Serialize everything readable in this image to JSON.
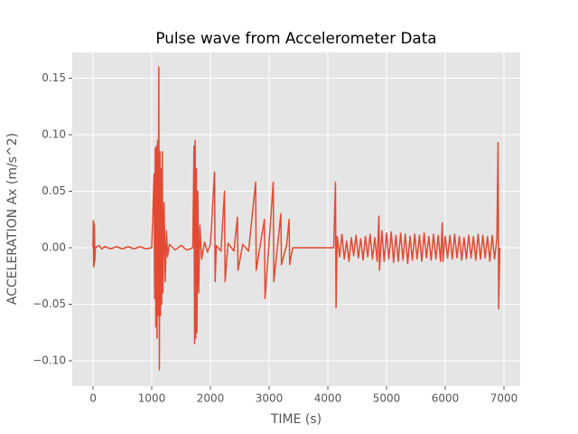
{
  "chart_data": {
    "type": "line",
    "title": "Pulse wave from Accelerometer Data",
    "x_label": "TIME (s)",
    "y_label": "ACCELERATION Ax (m/s^2)",
    "xlim": [
      -354,
      7277
    ],
    "ylim": [
      -0.1224,
      0.1728
    ],
    "xticks": [
      0,
      1000,
      2000,
      3000,
      4000,
      5000,
      6000,
      7000
    ],
    "yticks": [
      {
        "value": -0.1,
        "label": "−0.10"
      },
      {
        "value": -0.05,
        "label": "−0.05"
      },
      {
        "value": 0,
        "label": "0.00"
      },
      {
        "value": 0.05,
        "label": "0.05"
      },
      {
        "value": 0.1,
        "label": "0.10"
      },
      {
        "value": 0.15,
        "label": "0.15"
      }
    ],
    "grid": true,
    "color": "#e24a33",
    "x": [
      0,
      5,
      10,
      15,
      20,
      25,
      30,
      40,
      100,
      150,
      200,
      300,
      400,
      500,
      600,
      700,
      800,
      900,
      1000,
      1040,
      1050,
      1060,
      1070,
      1080,
      1090,
      1100,
      1110,
      1120,
      1130,
      1140,
      1150,
      1160,
      1170,
      1180,
      1190,
      1210,
      1230,
      1250,
      1270,
      1300,
      1400,
      1500,
      1600,
      1700,
      1720,
      1730,
      1740,
      1750,
      1760,
      1770,
      1785,
      1800,
      1820,
      1850,
      1900,
      1950,
      2000,
      2070,
      2080,
      2100,
      2180,
      2240,
      2250,
      2300,
      2400,
      2460,
      2470,
      2550,
      2650,
      2770,
      2780,
      2850,
      2920,
      2930,
      3000,
      3070,
      3080,
      3150,
      3200,
      3210,
      3300,
      3340,
      3350,
      3400,
      4100,
      4130,
      4140,
      4160,
      4200,
      4240,
      4280,
      4320,
      4360,
      4400,
      4440,
      4480,
      4520,
      4560,
      4600,
      4640,
      4680,
      4720,
      4760,
      4800,
      4840,
      4870,
      4880,
      4920,
      4960,
      5000,
      5040,
      5080,
      5120,
      5160,
      5200,
      5240,
      5280,
      5320,
      5360,
      5400,
      5440,
      5480,
      5520,
      5560,
      5600,
      5640,
      5680,
      5720,
      5760,
      5800,
      5840,
      5880,
      5920,
      5950,
      5960,
      6000,
      6040,
      6080,
      6120,
      6160,
      6200,
      6240,
      6280,
      6320,
      6360,
      6400,
      6440,
      6480,
      6520,
      6560,
      6600,
      6640,
      6680,
      6720,
      6760,
      6800,
      6840,
      6880,
      6900,
      6910,
      6930
    ],
    "values": [
      0,
      0.024,
      -0.017,
      0.022,
      -0.015,
      0.02,
      -0.012,
      0,
      0.002,
      -0.001,
      0.001,
      -0.001,
      0.001,
      -0.001,
      0.001,
      -0.001,
      0.001,
      -0.001,
      0,
      0.065,
      -0.045,
      0.088,
      -0.07,
      0.09,
      -0.08,
      0.095,
      -0.06,
      0.16,
      -0.108,
      0.085,
      -0.06,
      0.07,
      -0.05,
      0.085,
      -0.04,
      0.04,
      -0.03,
      0.015,
      -0.008,
      0.003,
      -0.002,
      0.002,
      -0.002,
      0,
      0.09,
      -0.085,
      0.095,
      -0.08,
      0.07,
      -0.075,
      0.05,
      -0.04,
      0.02,
      -0.01,
      0.005,
      -0.004,
      0.003,
      0.067,
      -0.03,
      0.002,
      -0.003,
      0.05,
      -0.03,
      0.004,
      -0.003,
      0.027,
      -0.02,
      0.003,
      -0.003,
      0.058,
      -0.02,
      0.003,
      0.025,
      -0.045,
      0.005,
      0.058,
      -0.03,
      0.005,
      0.03,
      -0.015,
      0.003,
      0.025,
      -0.015,
      0,
      0,
      0.058,
      -0.053,
      0.01,
      -0.008,
      0.012,
      -0.01,
      0.006,
      -0.012,
      0.009,
      -0.007,
      0.011,
      -0.009,
      0.008,
      -0.011,
      0.01,
      -0.008,
      0.012,
      -0.01,
      0.009,
      -0.012,
      0.028,
      -0.02,
      0.015,
      -0.012,
      0.013,
      -0.01,
      0.014,
      -0.013,
      0.011,
      -0.012,
      0.013,
      -0.011,
      0.012,
      -0.014,
      0.01,
      -0.011,
      0.012,
      -0.01,
      0.011,
      -0.012,
      0.013,
      -0.009,
      0.01,
      -0.011,
      0.012,
      -0.01,
      0.011,
      -0.012,
      0.022,
      -0.012,
      0.01,
      -0.009,
      0.011,
      -0.01,
      0.012,
      -0.009,
      0.01,
      -0.011,
      0.009,
      -0.01,
      0.011,
      -0.009,
      0.01,
      -0.011,
      0.012,
      -0.01,
      0.011,
      -0.009,
      0.01,
      -0.012,
      0.011,
      -0.01,
      0.008,
      0.093,
      -0.054,
      0
    ]
  }
}
